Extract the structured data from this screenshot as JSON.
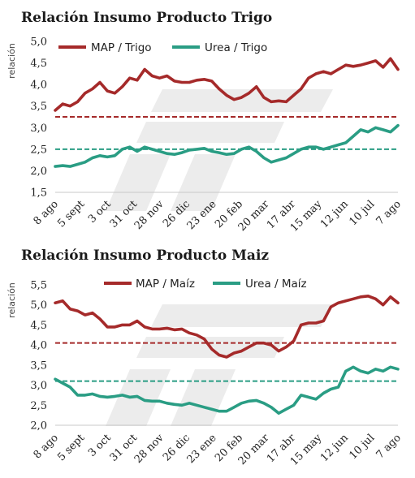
{
  "colors": {
    "map": "#a52a2a",
    "urea": "#2a9d84",
    "map_ref": "#a52a2a",
    "urea_ref": "#2a9d84",
    "watermark": "#ececec"
  },
  "chart_data": [
    {
      "type": "line",
      "title": "Relación Insumo Producto Trigo",
      "ylabel": "relación",
      "ylim": [
        1.5,
        5.0
      ],
      "yticks": [
        "5,0",
        "4,5",
        "4,0",
        "3,5",
        "3,0",
        "2,5",
        "2,0",
        "1,5"
      ],
      "ytick_values": [
        5.0,
        4.5,
        4.0,
        3.5,
        3.0,
        2.5,
        2.0,
        1.5
      ],
      "x_ticks": [
        "8 ago",
        "5 sept",
        "3 oct",
        "31 oct",
        "28 nov",
        "26 dic",
        "23 ene",
        "20 feb",
        "20 mar",
        "17 abr",
        "15 may",
        "12 jun",
        "10 jul",
        "7 ago"
      ],
      "legend_position": "top",
      "series": [
        {
          "name": "MAP / Trigo",
          "color": "#a52a2a",
          "values": [
            3.4,
            3.55,
            3.5,
            3.6,
            3.8,
            3.9,
            4.05,
            3.85,
            3.8,
            3.95,
            4.15,
            4.1,
            4.35,
            4.2,
            4.15,
            4.2,
            4.08,
            4.05,
            4.05,
            4.1,
            4.12,
            4.08,
            3.9,
            3.75,
            3.65,
            3.7,
            3.8,
            3.95,
            3.7,
            3.6,
            3.62,
            3.6,
            3.75,
            3.9,
            4.15,
            4.25,
            4.3,
            4.25,
            4.35,
            4.45,
            4.42,
            4.45,
            4.5,
            4.55,
            4.4,
            4.6,
            4.35
          ]
        },
        {
          "name": "Urea / Trigo",
          "color": "#2a9d84",
          "values": [
            2.1,
            2.12,
            2.1,
            2.15,
            2.2,
            2.3,
            2.35,
            2.32,
            2.35,
            2.5,
            2.55,
            2.45,
            2.55,
            2.5,
            2.45,
            2.4,
            2.38,
            2.42,
            2.48,
            2.5,
            2.52,
            2.45,
            2.42,
            2.38,
            2.4,
            2.5,
            2.55,
            2.45,
            2.3,
            2.2,
            2.25,
            2.3,
            2.4,
            2.5,
            2.55,
            2.55,
            2.5,
            2.55,
            2.6,
            2.65,
            2.8,
            2.95,
            2.9,
            3.0,
            2.95,
            2.9,
            3.05
          ]
        }
      ],
      "reference_lines": [
        {
          "series": "MAP / Trigo",
          "value": 3.25
        },
        {
          "series": "Urea / Trigo",
          "value": 2.5
        }
      ]
    },
    {
      "type": "line",
      "title": "Relación Insumo Producto Maiz",
      "ylabel": "relación",
      "ylim": [
        2.0,
        5.5
      ],
      "yticks": [
        "5,5",
        "5,0",
        "4,5",
        "4,0",
        "3,5",
        "3,0",
        "2,5",
        "2,0"
      ],
      "ytick_values": [
        5.5,
        5.0,
        4.5,
        4.0,
        3.5,
        3.0,
        2.5,
        2.0
      ],
      "x_ticks": [
        "8 ago",
        "5 sept",
        "3 oct",
        "31 oct",
        "28 nov",
        "26 dic",
        "23 ene",
        "20 feb",
        "20 mar",
        "17 abr",
        "15 may",
        "12 jun",
        "10 jul",
        "7 ago"
      ],
      "legend_position": "top",
      "series": [
        {
          "name": "MAP / Maíz",
          "color": "#a52a2a",
          "values": [
            5.05,
            5.1,
            4.9,
            4.85,
            4.75,
            4.8,
            4.65,
            4.45,
            4.45,
            4.5,
            4.5,
            4.6,
            4.45,
            4.4,
            4.4,
            4.42,
            4.38,
            4.4,
            4.3,
            4.25,
            4.15,
            3.9,
            3.75,
            3.7,
            3.8,
            3.85,
            3.95,
            4.05,
            4.05,
            4.0,
            3.85,
            3.95,
            4.1,
            4.5,
            4.55,
            4.55,
            4.6,
            4.95,
            5.05,
            5.1,
            5.15,
            5.2,
            5.22,
            5.15,
            5.0,
            5.2,
            5.05
          ]
        },
        {
          "name": "Urea / Maíz",
          "color": "#2a9d84",
          "values": [
            3.15,
            3.05,
            2.95,
            2.75,
            2.75,
            2.78,
            2.72,
            2.7,
            2.72,
            2.75,
            2.7,
            2.72,
            2.62,
            2.6,
            2.6,
            2.55,
            2.52,
            2.5,
            2.55,
            2.5,
            2.45,
            2.4,
            2.35,
            2.35,
            2.45,
            2.55,
            2.6,
            2.62,
            2.55,
            2.45,
            2.3,
            2.4,
            2.5,
            2.75,
            2.7,
            2.65,
            2.8,
            2.9,
            2.95,
            3.35,
            3.45,
            3.35,
            3.3,
            3.4,
            3.35,
            3.45,
            3.4
          ]
        }
      ],
      "reference_lines": [
        {
          "series": "MAP / Maíz",
          "value": 4.05
        },
        {
          "series": "Urea / Maíz",
          "value": 3.1
        }
      ]
    }
  ]
}
